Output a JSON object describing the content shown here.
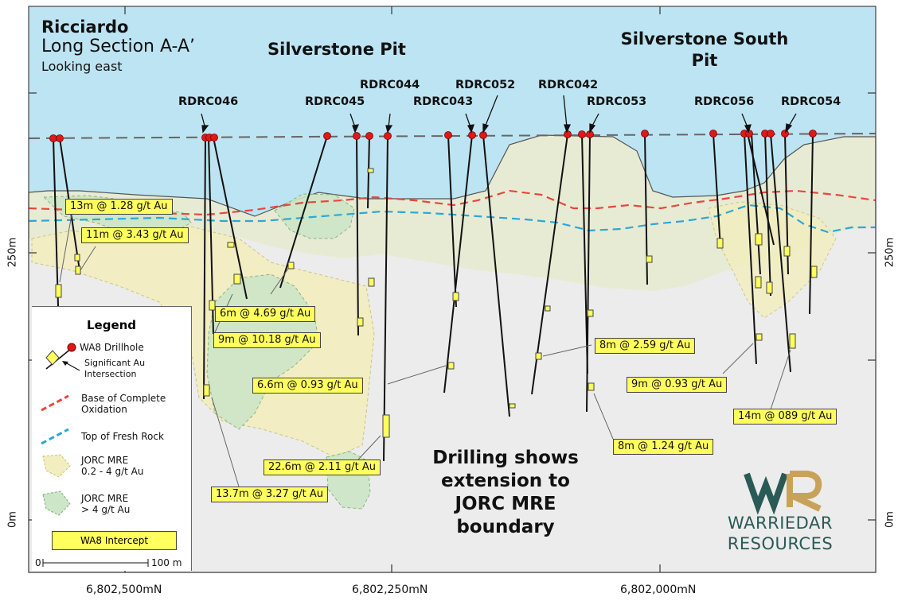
{
  "title": {
    "line1": "Ricciardo",
    "line2": "Long Section A-A’",
    "line3": "Looking east"
  },
  "pits": [
    {
      "id": "silverstone",
      "label": "Silverstone Pit"
    },
    {
      "id": "silverstone-south",
      "label_line1": "Silverstone South",
      "label_line2": "Pit"
    }
  ],
  "drillholes": [
    "RDRC046",
    "RDRC045",
    "RDRC044",
    "RDRC043",
    "RDRC052",
    "RDRC042",
    "RDRC053",
    "RDRC056",
    "RDRC054"
  ],
  "intercepts": [
    "13m @ 1.28 g/t Au",
    "11m @ 3.43 g/t Au",
    "6m @ 4.69 g/t Au",
    "9m @ 10.18 g/t Au",
    "6.6m @ 0.93 g/t Au",
    "22.6m @ 2.11 g/t Au",
    "13.7m @ 3.27 g/t Au",
    "8m @ 2.59 g/t Au",
    "8m @ 1.24 g/t Au",
    "9m @ 0.93 g/t Au",
    "14m @ 089 g/t Au"
  ],
  "callout": {
    "line1": "Drilling shows",
    "line2": "extension to",
    "line3": "JORC MRE",
    "line4": "boundary"
  },
  "legend": {
    "title": "Legend",
    "drillhole": "WA8 Drillhole",
    "significant_line1": "Significant Au",
    "significant_line2": "Intersection",
    "bco_line1": "Base of Complete",
    "bco_line2": "Oxidation",
    "tfr": "Top of Fresh Rock",
    "mre_low_line1": "JORC MRE",
    "mre_low_line2": "0.2 - 4 g/t Au",
    "mre_high_line1": "JORC MRE",
    "mre_high_line2": "> 4 g/t Au",
    "intercept": "WA8 Intercept",
    "scale_start": "0",
    "scale_end": "100 m"
  },
  "axis": {
    "x_ticks": [
      "6,802,500mN",
      "6,802,250mN",
      "6,802,000mN"
    ],
    "y_ticks": [
      "250m",
      "0m"
    ]
  },
  "logo": {
    "line1": "WARRIEDAR",
    "line2": "RESOURCES"
  },
  "colors": {
    "sky": "#bde4f2",
    "regolith": "#e8ebd4",
    "fresh_rock": "#ececec",
    "mre_low": "#f3eebf",
    "mre_high": "#cde6c7",
    "bco_line": "#e8473c",
    "tfr_line": "#2aa8d8",
    "collar": "#e01818",
    "intercept": "#ffff5e",
    "logo_teal": "#2a5a55",
    "logo_gold": "#c9a25a"
  }
}
